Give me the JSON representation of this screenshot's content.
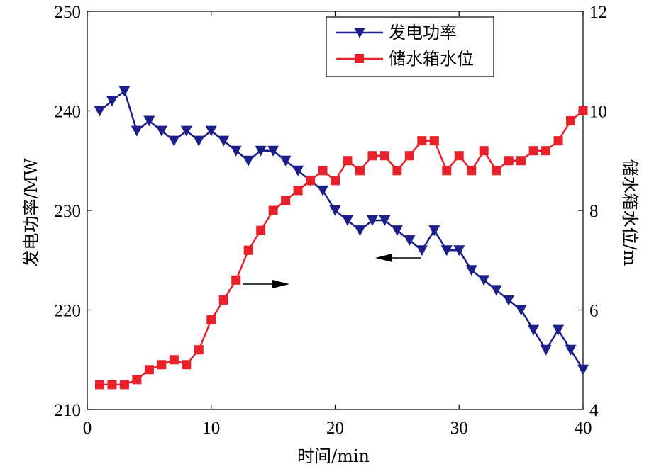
{
  "chart_data": {
    "type": "line",
    "title": "",
    "xlabel": "时间/min",
    "ylabel_left": "发电功率/MW",
    "ylabel_right": "储水箱水位/m",
    "xlim": [
      0,
      40
    ],
    "ylim_left": [
      210,
      250
    ],
    "ylim_right": [
      4,
      12
    ],
    "x_ticks": [
      "0",
      "10",
      "20",
      "30",
      "40"
    ],
    "y_left_ticks": [
      "210",
      "220",
      "230",
      "240",
      "250"
    ],
    "y_right_ticks": [
      "4",
      "6",
      "8",
      "10",
      "12"
    ],
    "grid": false,
    "legend_position": "top-right",
    "x": [
      1,
      2,
      3,
      4,
      5,
      6,
      7,
      8,
      9,
      10,
      11,
      12,
      13,
      14,
      15,
      16,
      17,
      18,
      19,
      20,
      21,
      22,
      23,
      24,
      25,
      26,
      27,
      28,
      29,
      30,
      31,
      32,
      33,
      34,
      35,
      36,
      37,
      38,
      39,
      40
    ],
    "series": [
      {
        "name": "发电功率",
        "axis": "left",
        "color": "#1c1f8a",
        "marker": "triangle-down",
        "values": [
          240,
          241,
          242,
          238,
          239,
          238,
          237,
          238,
          237,
          238,
          237,
          236,
          235,
          236,
          236,
          235,
          234,
          233,
          232,
          230,
          229,
          228,
          229,
          229,
          228,
          227,
          226,
          228,
          226,
          226,
          224,
          223,
          222,
          221,
          220,
          218,
          216,
          218,
          216,
          214
        ]
      },
      {
        "name": "储水箱水位",
        "axis": "right",
        "color": "#e8202a",
        "marker": "square",
        "values": [
          4.5,
          4.5,
          4.5,
          4.6,
          4.8,
          4.9,
          5.0,
          4.9,
          5.2,
          5.8,
          6.2,
          6.6,
          7.2,
          7.6,
          8.0,
          8.2,
          8.4,
          8.6,
          8.8,
          8.6,
          9.0,
          8.8,
          9.1,
          9.1,
          8.8,
          9.1,
          9.4,
          9.4,
          8.8,
          9.1,
          8.8,
          9.2,
          8.8,
          9.0,
          9.0,
          9.2,
          9.2,
          9.4,
          9.8,
          10.0
        ]
      }
    ],
    "annotations": [
      {
        "arrow": "right",
        "refers_to": "储水箱水位"
      },
      {
        "arrow": "left",
        "refers_to": "发电功率"
      }
    ]
  }
}
